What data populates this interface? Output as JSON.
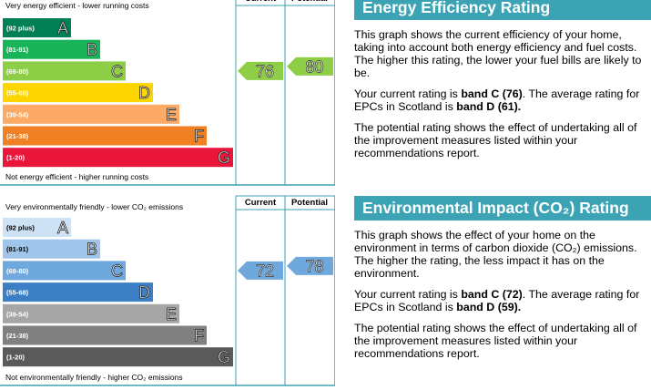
{
  "energy_chart": {
    "top_label": "Very energy efficient - lower running costs",
    "bottom_label": "Not energy efficient - higher running costs",
    "column_headers": [
      "Current",
      "Potential"
    ],
    "bands": [
      {
        "range": "(92 plus)",
        "letter": "A",
        "color": "#008054"
      },
      {
        "range": "(81-91)",
        "letter": "B",
        "color": "#19b459"
      },
      {
        "range": "(69-80)",
        "letter": "C",
        "color": "#8dce46"
      },
      {
        "range": "(55-68)",
        "letter": "D",
        "color": "#ffd500"
      },
      {
        "range": "(39-54)",
        "letter": "E",
        "color": "#fcaa65"
      },
      {
        "range": "(21-38)",
        "letter": "F",
        "color": "#ef8023"
      },
      {
        "range": "(1-20)",
        "letter": "G",
        "color": "#e9153b"
      }
    ],
    "current": 76,
    "potential": 80
  },
  "environment_chart": {
    "top_label": "Very environmentally friendly - lower CO₂ emissions",
    "bottom_label": "Not environmentally friendly - higher CO₂ emissions",
    "column_headers": [
      "Current",
      "Potential"
    ],
    "bands": [
      {
        "range": "(92 plus)",
        "letter": "A",
        "color": "#cde2f5",
        "text_color": "#000000"
      },
      {
        "range": "(81-91)",
        "letter": "B",
        "color": "#9fc6ea",
        "text_color": "#000000"
      },
      {
        "range": "(69-80)",
        "letter": "C",
        "color": "#6fa8dc"
      },
      {
        "range": "(55-68)",
        "letter": "D",
        "color": "#3d7fc4"
      },
      {
        "range": "(39-54)",
        "letter": "E",
        "color": "#a6a6a6"
      },
      {
        "range": "(21-38)",
        "letter": "F",
        "color": "#808080"
      },
      {
        "range": "(1-20)",
        "letter": "G",
        "color": "#5a5a5a"
      }
    ],
    "current": 72,
    "potential": 78
  },
  "energy_text": {
    "title": "Energy Efficiency Rating",
    "paragraphs": [
      [
        {
          "text": "This graph shows the current efficiency of your home, taking into account both energy efficiency and fuel costs. The higher this rating, the lower your fuel bills are likely to be."
        }
      ],
      [
        {
          "text": "Your current rating is "
        },
        {
          "text": "band C (76)",
          "bold": true
        },
        {
          "text": ". The average rating for EPCs in Scotland is "
        },
        {
          "text": "band D (61).",
          "bold": true
        }
      ],
      [
        {
          "text": "The potential rating shows the effect of undertaking all of the improvement measures listed within your recommendations report."
        }
      ]
    ]
  },
  "environment_text": {
    "title": "Environmental Impact (CO₂) Rating",
    "paragraphs": [
      [
        {
          "text": "This graph shows the effect of your home on the environment in terms of carbon dioxide (CO₂) emissions. The higher the rating, the less impact it has on the environment."
        }
      ],
      [
        {
          "text": "Your current rating is "
        },
        {
          "text": "band C (72)",
          "bold": true
        },
        {
          "text": ". The average rating for EPCs in Scotland is "
        },
        {
          "text": "band D (59).",
          "bold": true
        }
      ],
      [
        {
          "text": "The potential rating shows the effect of undertaking all of the improvement measures listed within your recommendations report."
        }
      ]
    ]
  }
}
